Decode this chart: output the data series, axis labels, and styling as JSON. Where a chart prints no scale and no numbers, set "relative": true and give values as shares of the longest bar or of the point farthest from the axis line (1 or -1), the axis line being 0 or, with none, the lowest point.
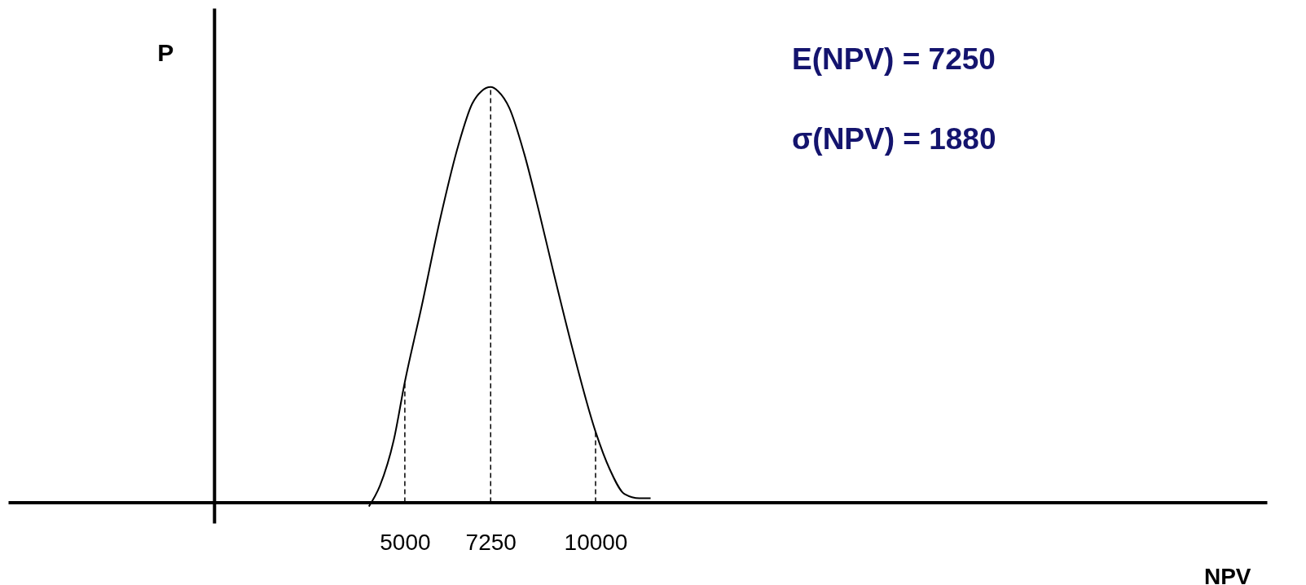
{
  "chart_data": {
    "type": "line",
    "relative": true,
    "xlabel": "NPV",
    "ylabel": "P",
    "xlim": [
      -5400,
      27600
    ],
    "xticks": [
      5000,
      7250,
      10000
    ],
    "marker": "none",
    "x": [
      4057,
      4347,
      4710,
      5000,
      5436,
      5920,
      6403,
      6766,
      7008,
      7250,
      7445,
      7738,
      8128,
      8518,
      8908,
      9395,
      10000,
      10370,
      10760,
      11150,
      11443
    ],
    "series": [
      {
        "color": "#000000",
        "values": [
          -0.01,
          0.04,
          0.15,
          0.29,
          0.47,
          0.68,
          0.86,
          0.96,
          0.99,
          1.0,
          0.99,
          0.95,
          0.84,
          0.7,
          0.55,
          0.37,
          0.17,
          0.08,
          0.02,
          0.01,
          0.01
        ]
      }
    ],
    "ref_lines": [
      {
        "axis": "x",
        "value": 5000,
        "color": "#000000",
        "line_style": "dashed"
      },
      {
        "axis": "x",
        "value": 7250,
        "color": "#000000",
        "line_style": "dashed"
      },
      {
        "axis": "x",
        "value": 10000,
        "color": "#000000",
        "line_style": "dashed"
      }
    ],
    "annotations": [
      "E(NPV) = 7250",
      "σ(NPV) = 1880"
    ]
  }
}
